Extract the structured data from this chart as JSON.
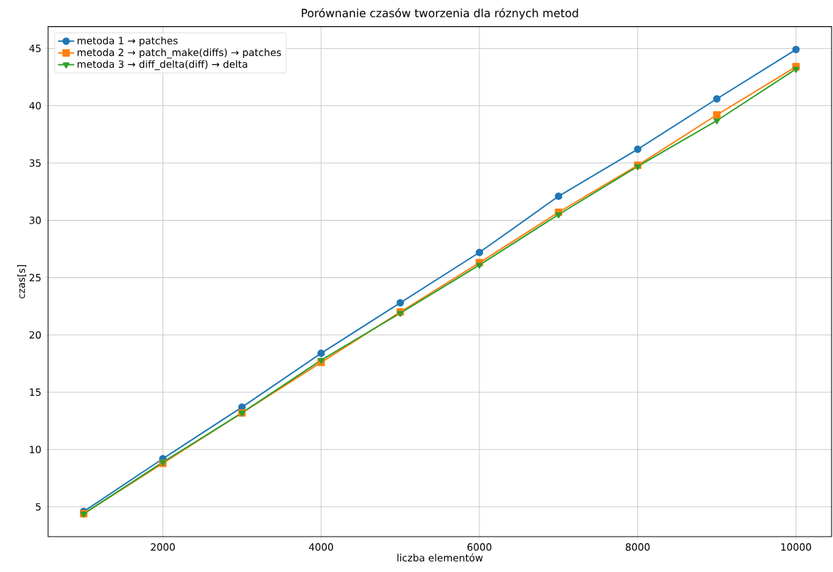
{
  "chart_data": {
    "type": "line",
    "title": "Porównanie czasów tworzenia dla róznych metod",
    "xlabel": "liczba elementów",
    "ylabel": "czas[s]",
    "x": [
      1000,
      2000,
      3000,
      4000,
      5000,
      6000,
      7000,
      8000,
      9000,
      10000
    ],
    "series": [
      {
        "name": "metoda 1 → patches",
        "color": "#1f77b4",
        "marker": "circle",
        "values": [
          4.6,
          9.2,
          13.7,
          18.4,
          22.8,
          27.2,
          32.1,
          36.2,
          40.6,
          44.9
        ]
      },
      {
        "name": "metoda 2 → patch_make(diffs) → patches",
        "color": "#ff7f0e",
        "marker": "square",
        "values": [
          4.4,
          8.8,
          13.2,
          17.6,
          22.0,
          26.3,
          30.7,
          34.8,
          39.2,
          43.4
        ]
      },
      {
        "name": "metoda 3 → diff_delta(diff) → delta",
        "color": "#2ca02c",
        "marker": "triangle_down",
        "values": [
          4.4,
          8.9,
          13.2,
          17.8,
          21.9,
          26.1,
          30.5,
          34.7,
          38.7,
          43.2
        ]
      }
    ],
    "xlim": [
      550,
      10450
    ],
    "ylim": [
      2.4,
      46.9
    ],
    "xticks": [
      2000,
      4000,
      6000,
      8000,
      10000
    ],
    "yticks": [
      5,
      10,
      15,
      20,
      25,
      30,
      35,
      40,
      45
    ],
    "grid": true,
    "legend": "top left",
    "line_style": "solid"
  }
}
